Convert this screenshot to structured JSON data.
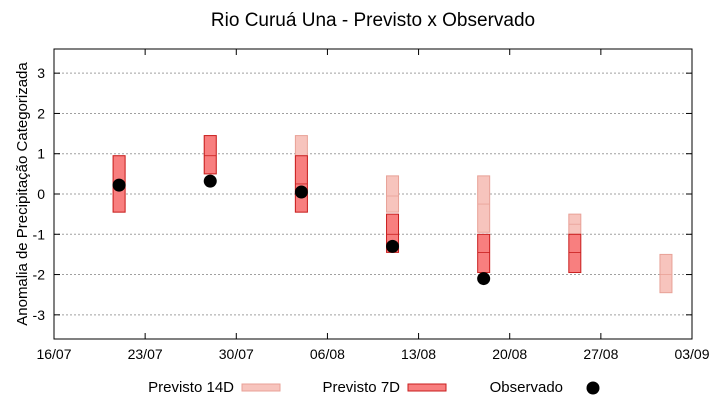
{
  "chart_data": {
    "type": "range-bar",
    "title": "Rio Curuá Una - Previsto x Observado",
    "xlabel": "",
    "ylabel": "Anomalia de Precipitação Categorizada",
    "ylim": [
      -3.6,
      3.6
    ],
    "yticks": [
      -3,
      -2,
      -1,
      0,
      1,
      2,
      3
    ],
    "ytick_labels": [
      "-3",
      "-2",
      "-1",
      "0",
      "1",
      "2",
      "3"
    ],
    "xlim": [
      "2024-07-16",
      "2024-09-03"
    ],
    "xticks": [
      "2024-07-16",
      "2024-07-23",
      "2024-07-30",
      "2024-08-06",
      "2024-08-13",
      "2024-08-20",
      "2024-08-27",
      "2024-09-03"
    ],
    "xtick_labels": [
      "16/07",
      "23/07",
      "30/07",
      "06/08",
      "13/08",
      "20/08",
      "27/08",
      "03/09"
    ],
    "grid": true,
    "legend_position": "bottom",
    "series": [
      {
        "name": "Previsto 14D",
        "color": "#f7c4bd",
        "edge": "#e8a197",
        "points": [
          {
            "x": "2024-07-21",
            "low": -0.45,
            "mid": 0.25,
            "high": 0.95
          },
          {
            "x": "2024-07-28",
            "low": 0.5,
            "mid": 0.95,
            "high": 1.45
          },
          {
            "x": "2024-08-04",
            "low": -0.45,
            "mid": 0.5,
            "high": 1.45
          },
          {
            "x": "2024-08-11",
            "low": -0.45,
            "mid": -0.05,
            "high": 0.45
          },
          {
            "x": "2024-08-18",
            "low": -0.95,
            "mid": -0.25,
            "high": 0.45
          },
          {
            "x": "2024-08-25",
            "low": -1.0,
            "mid": -0.75,
            "high": -0.5
          },
          {
            "x": "2024-09-01",
            "low": -2.45,
            "mid": -2.0,
            "high": -1.5
          }
        ]
      },
      {
        "name": "Previsto 7D",
        "color": "#f87f7f",
        "edge": "#c81e1e",
        "points": [
          {
            "x": "2024-07-21",
            "low": -0.45,
            "mid": 0.25,
            "high": 0.95
          },
          {
            "x": "2024-07-28",
            "low": 0.5,
            "mid": 0.95,
            "high": 1.45
          },
          {
            "x": "2024-08-04",
            "low": -0.45,
            "mid": 0.25,
            "high": 0.95
          },
          {
            "x": "2024-08-11",
            "low": -1.45,
            "mid": -1.0,
            "high": -0.5
          },
          {
            "x": "2024-08-18",
            "low": -1.95,
            "mid": -1.45,
            "high": -1.0
          },
          {
            "x": "2024-08-25",
            "low": -1.95,
            "mid": -1.45,
            "high": -1.0
          }
        ]
      },
      {
        "name": "Observado",
        "color": "#000000",
        "points": [
          {
            "x": "2024-07-21",
            "y": 0.22
          },
          {
            "x": "2024-07-28",
            "y": 0.32
          },
          {
            "x": "2024-08-04",
            "y": 0.05
          },
          {
            "x": "2024-08-11",
            "y": -1.3
          },
          {
            "x": "2024-08-18",
            "y": -2.1
          }
        ]
      }
    ]
  }
}
